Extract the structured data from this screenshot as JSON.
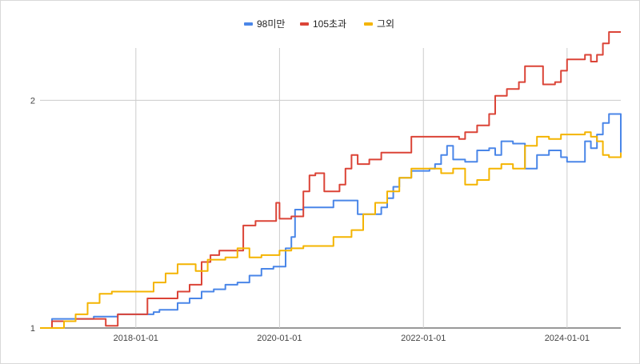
{
  "chart_data": {
    "type": "line",
    "title": "",
    "xlabel": "",
    "ylabel": "",
    "x_range": [
      "2016-09-01",
      "2024-09-30"
    ],
    "ylim": [
      1,
      2.3
    ],
    "grid": "vertical and horizontal gridlines",
    "legend_placement": "top-center",
    "x_ticks": [
      "2018-01-01",
      "2020-01-01",
      "2022-01-01",
      "2024-01-01"
    ],
    "y_ticks": [
      1,
      2
    ],
    "series": [
      {
        "name": "98미만",
        "color": "#4a86e8",
        "points": [
          [
            "2016-09-01",
            1.0
          ],
          [
            "2016-10-15",
            1.0
          ],
          [
            "2016-11-01",
            1.04
          ],
          [
            "2017-03-01",
            1.04
          ],
          [
            "2017-06-01",
            1.05
          ],
          [
            "2017-08-01",
            1.05
          ],
          [
            "2017-10-01",
            1.06
          ],
          [
            "2018-02-01",
            1.06
          ],
          [
            "2018-04-01",
            1.07
          ],
          [
            "2018-05-01",
            1.08
          ],
          [
            "2018-06-01",
            1.08
          ],
          [
            "2018-08-01",
            1.11
          ],
          [
            "2018-10-01",
            1.13
          ],
          [
            "2018-12-01",
            1.16
          ],
          [
            "2019-02-01",
            1.17
          ],
          [
            "2019-04-01",
            1.19
          ],
          [
            "2019-06-01",
            1.2
          ],
          [
            "2019-08-01",
            1.23
          ],
          [
            "2019-10-01",
            1.26
          ],
          [
            "2019-12-01",
            1.27
          ],
          [
            "2020-01-15",
            1.27
          ],
          [
            "2020-02-01",
            1.35
          ],
          [
            "2020-03-01",
            1.4
          ],
          [
            "2020-03-20",
            1.52
          ],
          [
            "2020-05-01",
            1.53
          ],
          [
            "2020-09-01",
            1.53
          ],
          [
            "2020-10-01",
            1.56
          ],
          [
            "2021-01-01",
            1.56
          ],
          [
            "2021-02-01",
            1.5
          ],
          [
            "2021-05-01",
            1.5
          ],
          [
            "2021-06-01",
            1.53
          ],
          [
            "2021-07-01",
            1.57
          ],
          [
            "2021-08-01",
            1.62
          ],
          [
            "2021-09-01",
            1.66
          ],
          [
            "2021-11-01",
            1.69
          ],
          [
            "2022-02-01",
            1.7
          ],
          [
            "2022-03-01",
            1.72
          ],
          [
            "2022-04-01",
            1.76
          ],
          [
            "2022-05-01",
            1.8
          ],
          [
            "2022-06-01",
            1.74
          ],
          [
            "2022-08-01",
            1.73
          ],
          [
            "2022-10-01",
            1.78
          ],
          [
            "2022-12-01",
            1.79
          ],
          [
            "2023-01-01",
            1.76
          ],
          [
            "2023-02-01",
            1.82
          ],
          [
            "2023-04-01",
            1.81
          ],
          [
            "2023-06-01",
            1.7
          ],
          [
            "2023-08-01",
            1.76
          ],
          [
            "2023-10-01",
            1.78
          ],
          [
            "2023-12-01",
            1.75
          ],
          [
            "2024-01-01",
            1.73
          ],
          [
            "2024-03-01",
            1.73
          ],
          [
            "2024-04-01",
            1.82
          ],
          [
            "2024-05-01",
            1.79
          ],
          [
            "2024-06-01",
            1.85
          ],
          [
            "2024-07-01",
            1.9
          ],
          [
            "2024-08-01",
            1.94
          ],
          [
            "2024-09-01",
            1.94
          ],
          [
            "2024-09-30",
            1.77
          ]
        ]
      },
      {
        "name": "105초과",
        "color": "#db4437",
        "points": [
          [
            "2016-09-01",
            1.0
          ],
          [
            "2016-10-15",
            1.0
          ],
          [
            "2016-11-01",
            1.03
          ],
          [
            "2017-03-01",
            1.04
          ],
          [
            "2017-06-01",
            1.04
          ],
          [
            "2017-08-01",
            1.01
          ],
          [
            "2017-10-01",
            1.06
          ],
          [
            "2018-02-01",
            1.06
          ],
          [
            "2018-03-01",
            1.13
          ],
          [
            "2018-06-01",
            1.13
          ],
          [
            "2018-08-01",
            1.16
          ],
          [
            "2018-10-01",
            1.19
          ],
          [
            "2018-12-01",
            1.29
          ],
          [
            "2019-01-15",
            1.32
          ],
          [
            "2019-03-01",
            1.34
          ],
          [
            "2019-06-01",
            1.34
          ],
          [
            "2019-07-01",
            1.45
          ],
          [
            "2019-09-01",
            1.47
          ],
          [
            "2019-11-01",
            1.47
          ],
          [
            "2019-12-15",
            1.55
          ],
          [
            "2020-01-01",
            1.48
          ],
          [
            "2020-03-01",
            1.49
          ],
          [
            "2020-05-01",
            1.6
          ],
          [
            "2020-06-01",
            1.67
          ],
          [
            "2020-07-01",
            1.68
          ],
          [
            "2020-08-15",
            1.6
          ],
          [
            "2020-11-01",
            1.63
          ],
          [
            "2020-12-01",
            1.7
          ],
          [
            "2021-01-01",
            1.76
          ],
          [
            "2021-02-01",
            1.72
          ],
          [
            "2021-04-01",
            1.74
          ],
          [
            "2021-06-01",
            1.77
          ],
          [
            "2021-10-01",
            1.77
          ],
          [
            "2021-11-01",
            1.84
          ],
          [
            "2022-02-01",
            1.84
          ],
          [
            "2022-06-01",
            1.84
          ],
          [
            "2022-07-01",
            1.83
          ],
          [
            "2022-08-01",
            1.86
          ],
          [
            "2022-10-01",
            1.89
          ],
          [
            "2022-12-01",
            1.94
          ],
          [
            "2023-01-01",
            2.02
          ],
          [
            "2023-03-01",
            2.05
          ],
          [
            "2023-05-01",
            2.08
          ],
          [
            "2023-06-01",
            2.15
          ],
          [
            "2023-08-01",
            2.15
          ],
          [
            "2023-09-01",
            2.07
          ],
          [
            "2023-11-01",
            2.08
          ],
          [
            "2023-12-01",
            2.13
          ],
          [
            "2024-01-01",
            2.18
          ],
          [
            "2024-03-01",
            2.18
          ],
          [
            "2024-04-01",
            2.2
          ],
          [
            "2024-05-01",
            2.17
          ],
          [
            "2024-06-01",
            2.2
          ],
          [
            "2024-07-01",
            2.25
          ],
          [
            "2024-08-01",
            2.3
          ],
          [
            "2024-09-30",
            2.3
          ]
        ]
      },
      {
        "name": "그외",
        "color": "#f4b400",
        "points": [
          [
            "2016-09-01",
            1.0
          ],
          [
            "2016-11-01",
            1.0
          ],
          [
            "2017-01-01",
            1.03
          ],
          [
            "2017-03-01",
            1.06
          ],
          [
            "2017-05-01",
            1.11
          ],
          [
            "2017-07-01",
            1.15
          ],
          [
            "2017-09-01",
            1.16
          ],
          [
            "2018-03-01",
            1.16
          ],
          [
            "2018-04-01",
            1.2
          ],
          [
            "2018-06-01",
            1.24
          ],
          [
            "2018-08-01",
            1.28
          ],
          [
            "2018-10-01",
            1.28
          ],
          [
            "2018-11-01",
            1.25
          ],
          [
            "2019-01-01",
            1.3
          ],
          [
            "2019-04-01",
            1.31
          ],
          [
            "2019-06-01",
            1.35
          ],
          [
            "2019-08-01",
            1.31
          ],
          [
            "2019-10-01",
            1.32
          ],
          [
            "2020-01-01",
            1.34
          ],
          [
            "2020-03-01",
            1.35
          ],
          [
            "2020-05-01",
            1.36
          ],
          [
            "2020-08-01",
            1.36
          ],
          [
            "2020-10-01",
            1.4
          ],
          [
            "2021-01-01",
            1.43
          ],
          [
            "2021-03-01",
            1.5
          ],
          [
            "2021-05-01",
            1.55
          ],
          [
            "2021-07-01",
            1.6
          ],
          [
            "2021-09-01",
            1.66
          ],
          [
            "2021-11-01",
            1.7
          ],
          [
            "2022-02-01",
            1.7
          ],
          [
            "2022-04-01",
            1.68
          ],
          [
            "2022-06-01",
            1.7
          ],
          [
            "2022-08-01",
            1.63
          ],
          [
            "2022-10-01",
            1.65
          ],
          [
            "2022-12-01",
            1.7
          ],
          [
            "2023-02-01",
            1.72
          ],
          [
            "2023-04-01",
            1.7
          ],
          [
            "2023-06-01",
            1.8
          ],
          [
            "2023-08-01",
            1.84
          ],
          [
            "2023-10-01",
            1.83
          ],
          [
            "2023-12-01",
            1.85
          ],
          [
            "2024-02-01",
            1.85
          ],
          [
            "2024-04-01",
            1.86
          ],
          [
            "2024-05-01",
            1.84
          ],
          [
            "2024-06-01",
            1.82
          ],
          [
            "2024-07-01",
            1.76
          ],
          [
            "2024-08-01",
            1.75
          ],
          [
            "2024-09-30",
            1.77
          ]
        ]
      }
    ]
  }
}
